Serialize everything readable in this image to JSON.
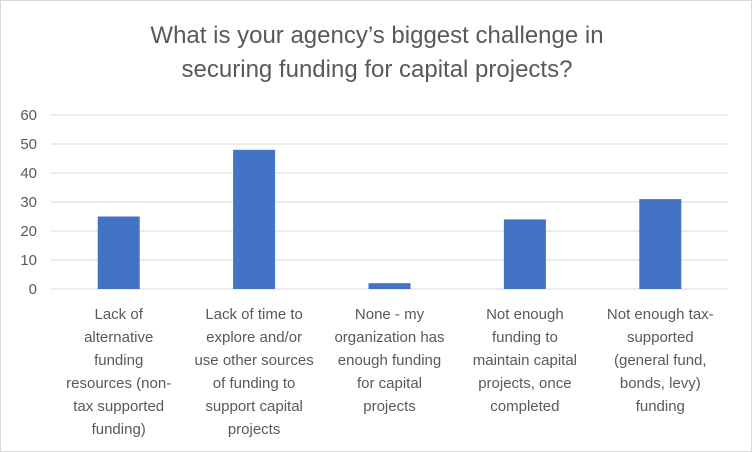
{
  "chart_data": {
    "type": "bar",
    "title_lines": [
      "What is your agency’s biggest challenge in",
      "securing funding for capital projects?"
    ],
    "categories": [
      "Lack of alternative funding resources (non-tax supported funding)",
      "Lack of time to explore and/or use other sources of funding to support capital projects",
      "None - my organization has enough funding for capital projects",
      "Not enough funding to maintain capital projects, once completed",
      "Not enough tax-supported (general fund, bonds, levy) funding"
    ],
    "category_lines": [
      [
        "Lack of",
        "alternative",
        "funding",
        "resources (non-",
        "tax supported",
        "funding)"
      ],
      [
        "Lack of time to",
        "explore and/or",
        "use other sources",
        "of funding to",
        "support capital",
        "projects"
      ],
      [
        "None - my",
        "organization has",
        "enough funding",
        "for capital",
        "projects"
      ],
      [
        "Not enough",
        "funding to",
        "maintain capital",
        "projects, once",
        "completed"
      ],
      [
        "Not enough tax-",
        "supported",
        "(general fund,",
        "bonds, levy)",
        "funding"
      ]
    ],
    "values": [
      25,
      48,
      2,
      24,
      31
    ],
    "yticks": [
      0,
      10,
      20,
      30,
      40,
      50,
      60
    ],
    "ylim": [
      0,
      60
    ],
    "grid": true,
    "legend": "none",
    "colors": {
      "bar": "#4472c4",
      "grid": "#d9d9d9",
      "text": "#595959"
    }
  }
}
